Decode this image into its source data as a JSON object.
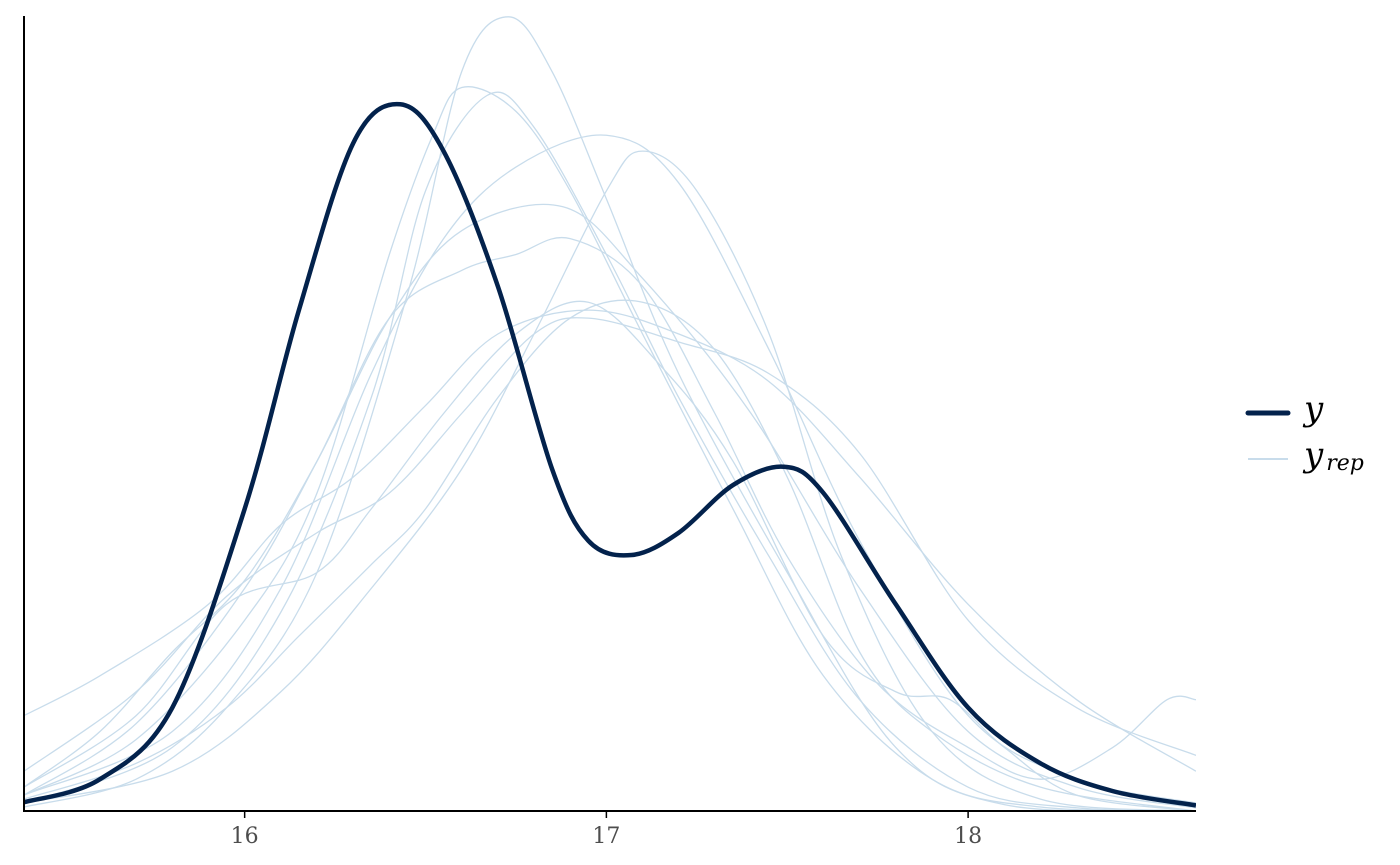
{
  "chart_data": {
    "type": "line",
    "xlim": [
      15.39,
      18.63
    ],
    "ylim": [
      0,
      1.0
    ],
    "x_ticks": [
      16,
      17,
      18
    ],
    "x_tick_labels": [
      "16",
      "17",
      "18"
    ],
    "yaxis_ticks_shown": false,
    "grid": false,
    "legend_position": "right",
    "legend": [
      {
        "symbol": "y",
        "sub": "",
        "series": "y"
      },
      {
        "symbol": "y",
        "sub": "rep",
        "series": "y_rep"
      }
    ],
    "colors": {
      "y": "#03224c",
      "y_rep": "#c8dceb",
      "axis": "#000000"
    },
    "series": [
      {
        "name": "y",
        "kind": "observed",
        "points": [
          [
            15.39,
            0.011
          ],
          [
            15.6,
            0.04
          ],
          [
            15.8,
            0.13
          ],
          [
            16.0,
            0.38
          ],
          [
            16.15,
            0.63
          ],
          [
            16.3,
            0.84
          ],
          [
            16.43,
            0.889
          ],
          [
            16.55,
            0.83
          ],
          [
            16.7,
            0.66
          ],
          [
            16.85,
            0.43
          ],
          [
            16.95,
            0.34
          ],
          [
            17.07,
            0.322
          ],
          [
            17.2,
            0.35
          ],
          [
            17.35,
            0.41
          ],
          [
            17.49,
            0.433
          ],
          [
            17.6,
            0.4
          ],
          [
            17.8,
            0.26
          ],
          [
            18.0,
            0.13
          ],
          [
            18.2,
            0.06
          ],
          [
            18.4,
            0.025
          ],
          [
            18.63,
            0.007
          ]
        ]
      },
      {
        "name": "y_rep_1",
        "kind": "replicate",
        "points": [
          [
            15.39,
            0.005
          ],
          [
            15.7,
            0.04
          ],
          [
            15.95,
            0.13
          ],
          [
            16.2,
            0.3
          ],
          [
            16.45,
            0.65
          ],
          [
            16.6,
            0.93
          ],
          [
            16.73,
            0.999
          ],
          [
            16.85,
            0.93
          ],
          [
            17.0,
            0.77
          ],
          [
            17.2,
            0.55
          ],
          [
            17.5,
            0.3
          ],
          [
            17.8,
            0.08
          ],
          [
            18.1,
            0.008
          ],
          [
            18.63,
            0.0
          ]
        ]
      },
      {
        "name": "y_rep_2",
        "kind": "replicate",
        "points": [
          [
            15.39,
            0.02
          ],
          [
            15.7,
            0.09
          ],
          [
            16.0,
            0.24
          ],
          [
            16.2,
            0.4
          ],
          [
            16.4,
            0.7
          ],
          [
            16.52,
            0.85
          ],
          [
            16.6,
            0.91
          ],
          [
            16.75,
            0.88
          ],
          [
            16.9,
            0.78
          ],
          [
            17.1,
            0.6
          ],
          [
            17.35,
            0.38
          ],
          [
            17.6,
            0.17
          ],
          [
            17.9,
            0.04
          ],
          [
            18.2,
            0.005
          ],
          [
            18.63,
            0.0
          ]
        ]
      },
      {
        "name": "y_rep_3",
        "kind": "replicate",
        "points": [
          [
            15.39,
            0.01
          ],
          [
            15.8,
            0.08
          ],
          [
            16.1,
            0.25
          ],
          [
            16.35,
            0.52
          ],
          [
            16.5,
            0.78
          ],
          [
            16.67,
            0.9
          ],
          [
            16.8,
            0.86
          ],
          [
            17.0,
            0.7
          ],
          [
            17.2,
            0.52
          ],
          [
            17.45,
            0.32
          ],
          [
            17.7,
            0.14
          ],
          [
            18.0,
            0.03
          ],
          [
            18.3,
            0.004
          ],
          [
            18.63,
            0.0
          ]
        ]
      },
      {
        "name": "y_rep_4",
        "kind": "replicate",
        "points": [
          [
            15.39,
            0.02
          ],
          [
            15.8,
            0.1
          ],
          [
            16.1,
            0.28
          ],
          [
            16.35,
            0.55
          ],
          [
            16.55,
            0.72
          ],
          [
            16.75,
            0.81
          ],
          [
            17.0,
            0.85
          ],
          [
            17.2,
            0.79
          ],
          [
            17.45,
            0.58
          ],
          [
            17.7,
            0.34
          ],
          [
            18.0,
            0.12
          ],
          [
            18.3,
            0.04
          ],
          [
            18.63,
            0.01
          ]
        ]
      },
      {
        "name": "y_rep_5",
        "kind": "replicate",
        "points": [
          [
            15.39,
            0.01
          ],
          [
            15.8,
            0.05
          ],
          [
            16.1,
            0.15
          ],
          [
            16.35,
            0.28
          ],
          [
            16.6,
            0.43
          ],
          [
            16.8,
            0.6
          ],
          [
            17.0,
            0.78
          ],
          [
            17.1,
            0.83
          ],
          [
            17.25,
            0.78
          ],
          [
            17.45,
            0.6
          ],
          [
            17.65,
            0.32
          ],
          [
            17.9,
            0.1
          ],
          [
            18.2,
            0.015
          ],
          [
            18.63,
            0.0
          ]
        ]
      },
      {
        "name": "y_rep_6",
        "kind": "replicate",
        "points": [
          [
            15.39,
            0.03
          ],
          [
            15.6,
            0.1
          ],
          [
            15.8,
            0.2
          ],
          [
            16.0,
            0.29
          ],
          [
            16.2,
            0.44
          ],
          [
            16.4,
            0.62
          ],
          [
            16.6,
            0.73
          ],
          [
            16.88,
            0.76
          ],
          [
            17.1,
            0.67
          ],
          [
            17.4,
            0.5
          ],
          [
            17.7,
            0.28
          ],
          [
            18.0,
            0.1
          ],
          [
            18.3,
            0.03
          ],
          [
            18.63,
            0.004
          ]
        ]
      },
      {
        "name": "y_rep_7",
        "kind": "replicate",
        "points": [
          [
            15.39,
            0.02
          ],
          [
            15.7,
            0.11
          ],
          [
            16.0,
            0.28
          ],
          [
            16.2,
            0.44
          ],
          [
            16.4,
            0.62
          ],
          [
            16.6,
            0.68
          ],
          [
            16.75,
            0.7
          ],
          [
            16.9,
            0.72
          ],
          [
            17.1,
            0.66
          ],
          [
            17.3,
            0.5
          ],
          [
            17.5,
            0.32
          ],
          [
            17.75,
            0.16
          ],
          [
            18.0,
            0.08
          ],
          [
            18.2,
            0.04
          ],
          [
            18.4,
            0.08
          ],
          [
            18.55,
            0.14
          ],
          [
            18.63,
            0.14
          ]
        ]
      },
      {
        "name": "y_rep_8",
        "kind": "replicate",
        "points": [
          [
            15.39,
            0.12
          ],
          [
            15.6,
            0.17
          ],
          [
            15.9,
            0.26
          ],
          [
            16.1,
            0.36
          ],
          [
            16.3,
            0.42
          ],
          [
            16.5,
            0.51
          ],
          [
            16.7,
            0.6
          ],
          [
            16.95,
            0.63
          ],
          [
            17.2,
            0.6
          ],
          [
            17.45,
            0.54
          ],
          [
            17.7,
            0.42
          ],
          [
            18.0,
            0.26
          ],
          [
            18.3,
            0.14
          ],
          [
            18.63,
            0.05
          ]
        ]
      },
      {
        "name": "y_rep_9",
        "kind": "replicate",
        "points": [
          [
            15.39,
            0.05
          ],
          [
            15.7,
            0.15
          ],
          [
            15.95,
            0.27
          ],
          [
            16.2,
            0.35
          ],
          [
            16.4,
            0.4
          ],
          [
            16.6,
            0.5
          ],
          [
            16.8,
            0.6
          ],
          [
            16.95,
            0.62
          ],
          [
            17.2,
            0.59
          ],
          [
            17.45,
            0.55
          ],
          [
            17.7,
            0.45
          ],
          [
            18.0,
            0.24
          ],
          [
            18.3,
            0.13
          ],
          [
            18.63,
            0.07
          ]
        ]
      },
      {
        "name": "y_rep_10",
        "kind": "replicate",
        "points": [
          [
            15.39,
            0.03
          ],
          [
            15.7,
            0.12
          ],
          [
            15.95,
            0.26
          ],
          [
            16.2,
            0.3
          ],
          [
            16.35,
            0.38
          ],
          [
            16.55,
            0.5
          ],
          [
            16.75,
            0.6
          ],
          [
            16.95,
            0.64
          ],
          [
            17.15,
            0.56
          ],
          [
            17.35,
            0.44
          ],
          [
            17.6,
            0.22
          ],
          [
            17.8,
            0.15
          ],
          [
            17.95,
            0.14
          ],
          [
            18.1,
            0.08
          ],
          [
            18.3,
            0.02
          ],
          [
            18.63,
            0.0
          ]
        ]
      },
      {
        "name": "y_rep_11",
        "kind": "replicate",
        "points": [
          [
            15.39,
            0.015
          ],
          [
            15.7,
            0.06
          ],
          [
            15.95,
            0.13
          ],
          [
            16.15,
            0.22
          ],
          [
            16.35,
            0.31
          ],
          [
            16.5,
            0.38
          ],
          [
            16.7,
            0.52
          ],
          [
            16.9,
            0.62
          ],
          [
            17.1,
            0.64
          ],
          [
            17.3,
            0.58
          ],
          [
            17.5,
            0.42
          ],
          [
            17.7,
            0.2
          ],
          [
            17.9,
            0.1
          ],
          [
            18.2,
            0.03
          ],
          [
            18.63,
            0.0
          ]
        ]
      }
    ]
  }
}
